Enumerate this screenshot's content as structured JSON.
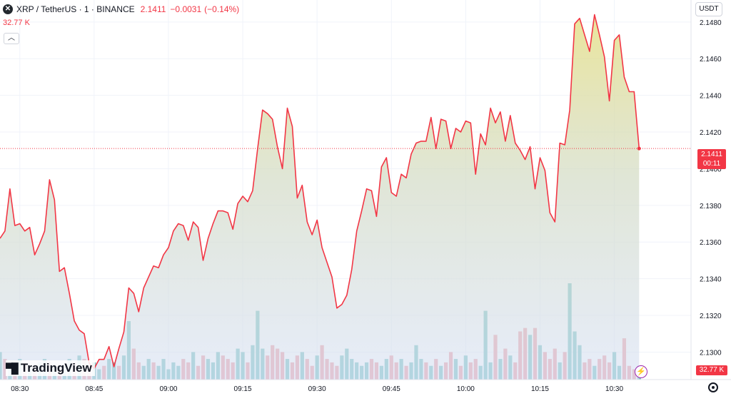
{
  "header": {
    "symbol": "XRP / TetherUS · 1 · BINANCE",
    "last": "2.1411",
    "change": "−0.0031",
    "change_pct": "(−0.14%)"
  },
  "volume_label": "32.77 K",
  "currency": "USDT",
  "price_tag": {
    "price": "2.1411",
    "countdown": "00:11"
  },
  "volume_tag": "32.77 K",
  "logo_text": "TradingView",
  "colors": {
    "line": "#f23645",
    "vol_up": "#7ec5c3",
    "vol_down": "#f0a1a7",
    "grid": "#f0f3fa",
    "axis_text": "#131722"
  },
  "chart_data": {
    "type": "area",
    "x_start": "08:26",
    "x_interval_minutes": 1,
    "ylim": [
      2.1285,
      2.1492
    ],
    "y_ticks": [
      "2.1480",
      "2.1460",
      "2.1440",
      "2.1420",
      "2.1400",
      "2.1380",
      "2.1360",
      "2.1340",
      "2.1320",
      "2.1300"
    ],
    "y_tick_values": [
      2.148,
      2.146,
      2.144,
      2.142,
      2.14,
      2.138,
      2.136,
      2.134,
      2.132,
      2.13
    ],
    "x_ticks": [
      "08:30",
      "08:45",
      "09:00",
      "09:15",
      "09:30",
      "09:45",
      "10:00",
      "10:15",
      "10:30"
    ],
    "x_tick_minutes": [
      4,
      19,
      34,
      49,
      64,
      79,
      94,
      109,
      124
    ],
    "last_price_line": 2.1411,
    "series": [
      {
        "values": [
          2.1362,
          2.1366,
          2.1389,
          2.1369,
          2.137,
          2.1366,
          2.1368,
          2.1353,
          2.1359,
          2.1366,
          2.1394,
          2.1383,
          2.1344,
          2.1346,
          2.1332,
          2.1317,
          2.1312,
          2.131,
          2.1294,
          2.1291,
          2.1296,
          2.1296,
          2.1303,
          2.1292,
          2.1302,
          2.1311,
          2.1335,
          2.1332,
          2.1322,
          2.1335,
          2.1341,
          2.1347,
          2.1346,
          2.1353,
          2.1357,
          2.1366,
          2.137,
          2.1369,
          2.1361,
          2.1371,
          2.1368,
          2.135,
          2.1362,
          2.137,
          2.1377,
          2.1377,
          2.1376,
          2.1367,
          2.1381,
          2.1385,
          2.1382,
          2.1388,
          2.1411,
          2.1432,
          2.143,
          2.1427,
          2.1412,
          2.14,
          2.1433,
          2.1423,
          2.1384,
          2.1391,
          2.1371,
          2.1364,
          2.1372,
          2.1357,
          2.1349,
          2.1341,
          2.1324,
          2.1326,
          2.1331,
          2.1345,
          2.1366,
          2.1377,
          2.1389,
          2.1388,
          2.1374,
          2.1401,
          2.1406,
          2.1387,
          2.1385,
          2.1397,
          2.1395,
          2.1408,
          2.1414,
          2.1415,
          2.1415,
          2.1428,
          2.1411,
          2.1427,
          2.1426,
          2.1411,
          2.1422,
          2.142,
          2.1426,
          2.1425,
          2.1397,
          2.1419,
          2.1413,
          2.1433,
          2.1425,
          2.1431,
          2.1415,
          2.1429,
          2.1414,
          2.141,
          2.1405,
          2.1412,
          2.1389,
          2.1406,
          2.1399,
          2.1376,
          2.1371,
          2.1414,
          2.1413,
          2.1432,
          2.1479,
          2.1482,
          2.1473,
          2.1464,
          2.1484,
          2.1473,
          2.1461,
          2.1437,
          2.147,
          2.1473,
          2.145,
          2.1442,
          2.1442,
          2.1411
        ]
      }
    ],
    "volume": {
      "values": [
        8,
        6,
        4,
        3,
        6,
        5,
        4,
        3,
        5,
        6,
        5,
        4,
        3,
        4,
        6,
        5,
        7,
        6,
        4,
        5,
        3,
        4,
        6,
        5,
        4,
        7,
        17,
        9,
        5,
        4,
        6,
        5,
        4,
        6,
        3,
        5,
        4,
        6,
        5,
        8,
        4,
        7,
        6,
        5,
        8,
        7,
        6,
        5,
        9,
        8,
        5,
        10,
        20,
        9,
        7,
        10,
        9,
        8,
        6,
        5,
        7,
        8,
        6,
        4,
        7,
        10,
        6,
        5,
        4,
        7,
        9,
        6,
        5,
        4,
        5,
        6,
        5,
        4,
        6,
        7,
        5,
        6,
        4,
        5,
        10,
        6,
        5,
        4,
        6,
        4,
        5,
        8,
        6,
        4,
        7,
        5,
        6,
        4,
        20,
        5,
        13,
        6,
        9,
        7,
        5,
        14,
        15,
        13,
        15,
        10,
        8,
        6,
        9,
        5,
        8,
        28,
        14,
        10,
        5,
        6,
        4,
        6,
        7,
        5,
        8,
        4,
        12,
        4,
        3,
        4
      ],
      "up": [
        1,
        0,
        1,
        0,
        1,
        0,
        1,
        0,
        1,
        1,
        0,
        1,
        0,
        1,
        1,
        0,
        1,
        0,
        0,
        1,
        1,
        0,
        1,
        1,
        0,
        1,
        1,
        0,
        0,
        1,
        1,
        0,
        1,
        1,
        1,
        1,
        1,
        0,
        0,
        1,
        0,
        0,
        1,
        1,
        1,
        0,
        0,
        0,
        1,
        1,
        0,
        1,
        1,
        1,
        0,
        0,
        0,
        0,
        1,
        0,
        0,
        1,
        0,
        0,
        1,
        0,
        0,
        0,
        0,
        1,
        1,
        1,
        1,
        1,
        1,
        0,
        0,
        1,
        1,
        0,
        0,
        1,
        0,
        1,
        1,
        1,
        0,
        1,
        0,
        1,
        0,
        0,
        1,
        0,
        1,
        0,
        0,
        1,
        1,
        1,
        0,
        1,
        0,
        1,
        0,
        0,
        0,
        1,
        0,
        1,
        0,
        0,
        0,
        1,
        0,
        1,
        1,
        1,
        0,
        0,
        1,
        0,
        0,
        0,
        1,
        1,
        0,
        0,
        0,
        1
      ]
    }
  }
}
